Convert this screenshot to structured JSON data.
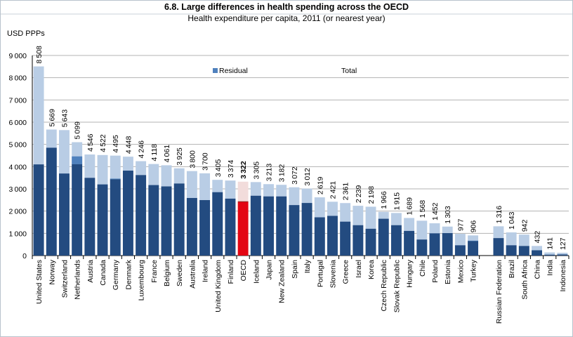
{
  "chart_data": {
    "type": "bar",
    "stacked": true,
    "title": "6.8. Large differences in health spending across the OECD",
    "subtitle": "Health expenditure per capita, 2011 (or nearest year)",
    "ylabel": "USD PPPs",
    "xlabel": "",
    "ylim": [
      0,
      9000
    ],
    "yticks": [
      0,
      1000,
      2000,
      3000,
      4000,
      5000,
      6000,
      7000,
      8000,
      9000
    ],
    "grid": true,
    "legend": {
      "placement": "top-center",
      "entries": [
        "Residual",
        "Total"
      ]
    },
    "colors": {
      "dark": "#234b80",
      "total": "#b9cde5",
      "residual": "#4f81bd",
      "highlight": "#e30613",
      "highlight_total": "#f2dcdb"
    },
    "highlight": "OECD",
    "gap_before": "Russian Federation",
    "categories": [
      "United States",
      "Norway",
      "Switzerland",
      "Netherlands",
      "Austria",
      "Canada",
      "Germany",
      "Denmark",
      "Luxembourg",
      "France",
      "Belgium",
      "Sweden",
      "Australia",
      "Ireland",
      "United Kingdom",
      "Finland",
      "OECD",
      "Iceland",
      "Japan",
      "New Zealand",
      "Spain",
      "Italy",
      "Portugal",
      "Slovenia",
      "Greece",
      "Israel",
      "Korea",
      "Czech Republic",
      "Slovak Republic",
      "Hungary",
      "Chile",
      "Poland",
      "Estonia",
      "Mexico",
      "Turkey",
      "Russian Federation",
      "Brazil",
      "South Africa",
      "China",
      "India",
      "Indonesia"
    ],
    "series": [
      {
        "values": [
          4100,
          4850,
          3690,
          4110,
          3495,
          3200,
          3430,
          3820,
          3620,
          3170,
          3110,
          3240,
          2590,
          2495,
          2850,
          2560,
          2400,
          2690,
          2660,
          2660,
          2270,
          2365,
          1720,
          1785,
          1525,
          1365,
          1205,
          1655,
          1365,
          1108,
          720,
          1000,
          1010,
          462,
          650,
          785,
          462,
          430,
          237,
          40,
          50
        ]
      },
      {
        "name": "Residual",
        "values": [
          0,
          0,
          0,
          350,
          0,
          0,
          30,
          0,
          0,
          0,
          0,
          0,
          0,
          0,
          0,
          0,
          40,
          0,
          0,
          0,
          0,
          0,
          0,
          0,
          0,
          0,
          0,
          0,
          0,
          0,
          0,
          0,
          0,
          0,
          20,
          0,
          0,
          0,
          0,
          0,
          0
        ]
      },
      {
        "name": "Total",
        "values": [
          8508,
          5669,
          5643,
          5099,
          4546,
          4522,
          4495,
          4448,
          4246,
          4118,
          4061,
          3925,
          3800,
          3700,
          3405,
          3374,
          3322,
          3305,
          3213,
          3182,
          3072,
          3012,
          2619,
          2421,
          2361,
          2239,
          2198,
          1966,
          1915,
          1689,
          1568,
          1452,
          1303,
          977,
          906,
          1316,
          1043,
          942,
          432,
          141,
          127
        ]
      }
    ]
  }
}
